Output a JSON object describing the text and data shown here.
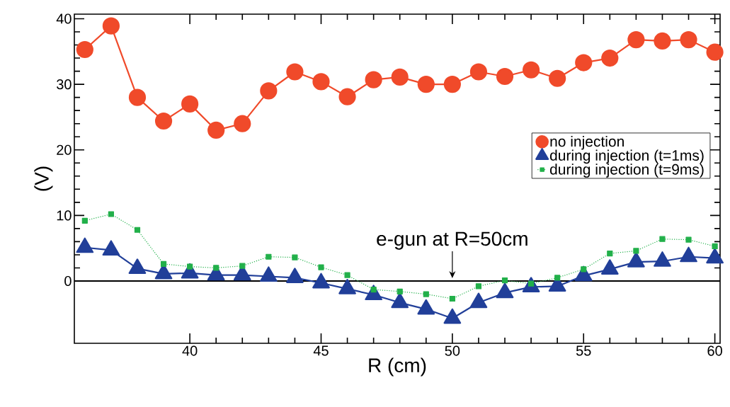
{
  "chart_data": {
    "type": "line",
    "xlabel": "R (cm)",
    "ylabel": "(V)",
    "x": [
      36,
      37,
      38,
      39,
      40,
      41,
      42,
      43,
      44,
      45,
      46,
      47,
      48,
      49,
      50,
      51,
      52,
      53,
      54,
      55,
      56,
      57,
      58,
      59,
      60
    ],
    "series": [
      {
        "name": "no injection",
        "color": "#f04a2a",
        "marker": "circle",
        "line_style": "solid",
        "values": [
          35.3,
          38.9,
          28.0,
          24.4,
          27.0,
          23.0,
          24.0,
          29.0,
          31.9,
          30.4,
          28.1,
          30.7,
          31.1,
          30.0,
          30.0,
          31.9,
          31.2,
          32.2,
          30.9,
          33.3,
          34.0,
          36.8,
          36.6,
          36.8,
          34.9
        ]
      },
      {
        "name": "during injection (t=1ms)",
        "color": "#213f99",
        "marker": "triangle",
        "line_style": "solid",
        "values": [
          5.1,
          4.7,
          1.9,
          1.1,
          1.2,
          0.9,
          0.9,
          0.7,
          0.5,
          -0.3,
          -1.2,
          -2.1,
          -3.3,
          -4.3,
          -5.7,
          -3.3,
          -1.8,
          -0.9,
          -0.8,
          0.8,
          1.8,
          2.9,
          3.0,
          3.7,
          3.5
        ]
      },
      {
        "name": "during injection (t=9ms)",
        "color": "#22b04a",
        "marker": "square",
        "line_style": "dotted",
        "values": [
          9.2,
          10.2,
          7.8,
          2.6,
          2.2,
          2.0,
          2.3,
          3.7,
          3.6,
          2.1,
          0.9,
          -1.3,
          -1.6,
          -2.0,
          -2.7,
          -0.8,
          0.1,
          -0.4,
          0.5,
          1.8,
          4.2,
          4.6,
          6.4,
          6.3,
          5.3
        ]
      }
    ],
    "xlim": [
      35.6,
      60.2
    ],
    "ylim": [
      -9.5,
      40.7
    ],
    "xticks": [
      40,
      45,
      50,
      55,
      60
    ],
    "yticks": [
      0,
      10,
      20,
      30,
      40
    ],
    "ref_lines": [
      {
        "axis": "y",
        "value": 0,
        "color": "#000000"
      }
    ],
    "annotations": [
      {
        "text": "e-gun at R=50cm",
        "x": 50,
        "y": 0
      }
    ],
    "legend": "right",
    "grid": false
  }
}
